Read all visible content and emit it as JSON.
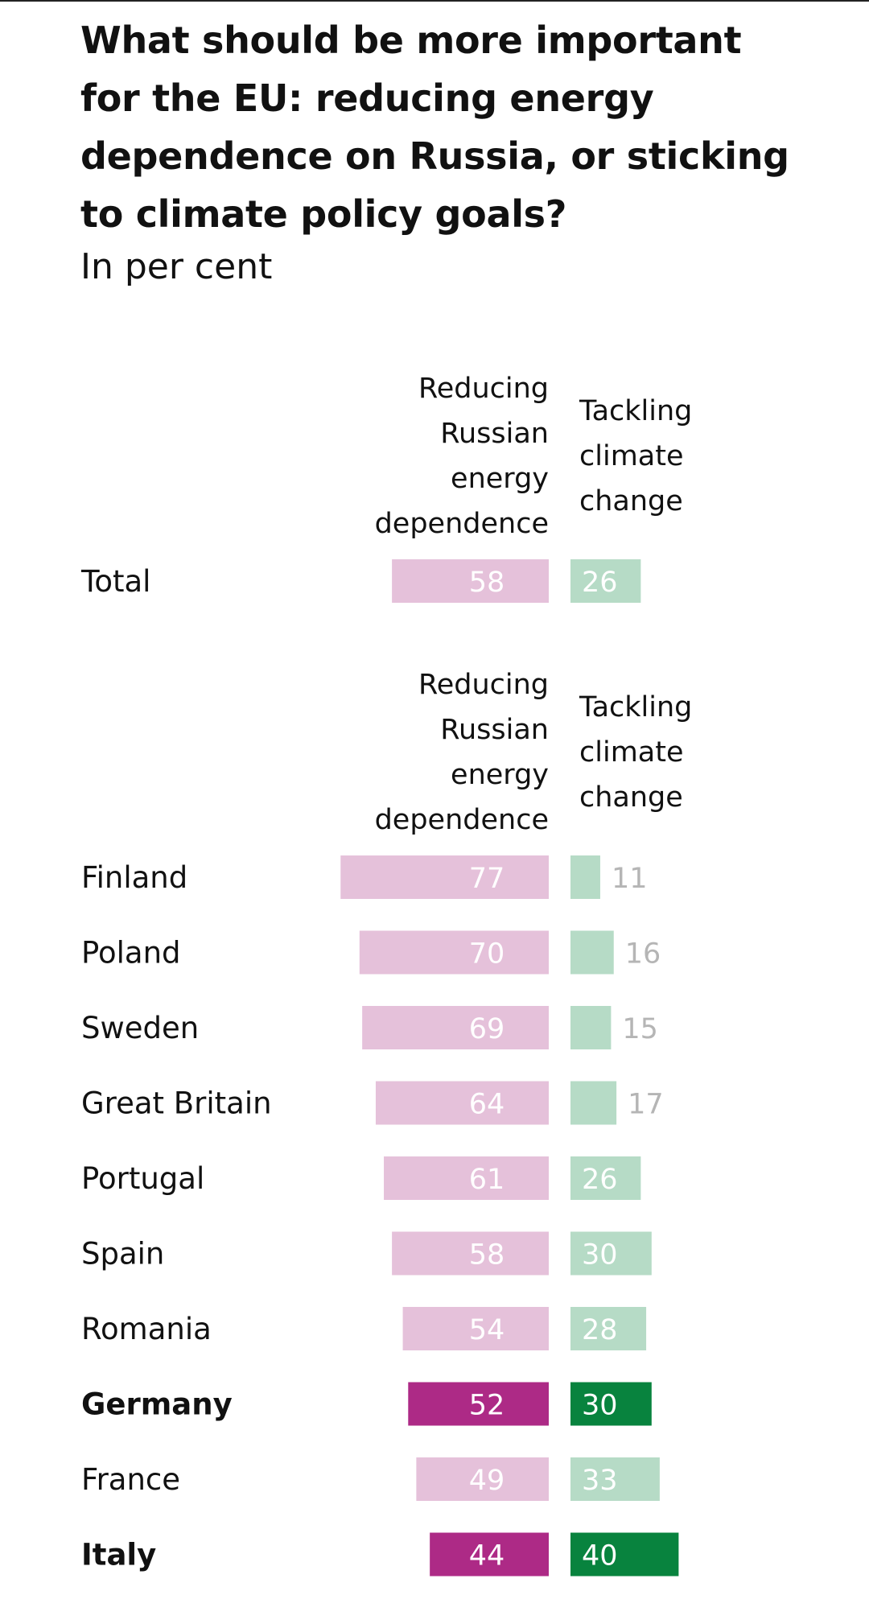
{
  "chart_data": {
    "type": "bar",
    "title": "What should be more important for the EU: reducing energy dependence on Russia, or sticking to climate policy goals?",
    "subtitle": "In per cent",
    "series_names": [
      "Reducing Russian energy dependence",
      "Tackling climate change"
    ],
    "header_lines": {
      "reducing": [
        "Reducing",
        "Russian",
        "energy",
        "dependence"
      ],
      "tackling": [
        "Tackling",
        "climate",
        "change"
      ]
    },
    "colors": {
      "reducing_light": "#e5c1da",
      "reducing_dark": "#ad2a86",
      "tackling_light": "#b6dbc6",
      "tackling_dark": "#08833e",
      "value_outside": "#b5b5b5",
      "value_inside": "#ffffff"
    },
    "total": {
      "label": "Total",
      "reducing": 58,
      "tackling": 26
    },
    "countries": [
      {
        "label": "Finland",
        "reducing": 77,
        "tackling": 11,
        "highlight": false
      },
      {
        "label": "Poland",
        "reducing": 70,
        "tackling": 16,
        "highlight": false
      },
      {
        "label": "Sweden",
        "reducing": 69,
        "tackling": 15,
        "highlight": false
      },
      {
        "label": "Great Britain",
        "reducing": 64,
        "tackling": 17,
        "highlight": false
      },
      {
        "label": "Portugal",
        "reducing": 61,
        "tackling": 26,
        "highlight": false
      },
      {
        "label": "Spain",
        "reducing": 58,
        "tackling": 30,
        "highlight": false
      },
      {
        "label": "Romania",
        "reducing": 54,
        "tackling": 28,
        "highlight": false
      },
      {
        "label": "Germany",
        "reducing": 52,
        "tackling": 30,
        "highlight": true
      },
      {
        "label": "France",
        "reducing": 49,
        "tackling": 33,
        "highlight": false
      },
      {
        "label": "Italy",
        "reducing": 44,
        "tackling": 40,
        "highlight": true
      }
    ]
  }
}
